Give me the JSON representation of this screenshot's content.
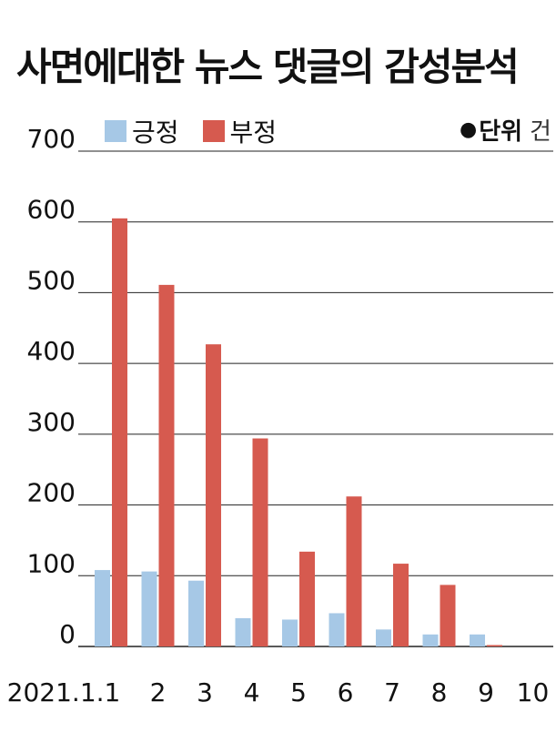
{
  "title": "사면에대한 뉴스 댓글의 감성분석",
  "unit": {
    "label": "단위",
    "value": "건"
  },
  "colors": {
    "positive": "#a6c8e6",
    "negative": "#d65a4f",
    "grid": "#222222"
  },
  "chart_data": {
    "type": "bar",
    "title": "사면에대한 뉴스 댓글의 감성분석",
    "categories": [
      "2021.1.1",
      "2",
      "3",
      "4",
      "5",
      "6",
      "7",
      "8",
      "9",
      "10"
    ],
    "series": [
      {
        "name": "긍정",
        "values": [
          108,
          106,
          93,
          40,
          38,
          47,
          24,
          17,
          17,
          0
        ]
      },
      {
        "name": "부정",
        "values": [
          605,
          511,
          427,
          294,
          134,
          212,
          117,
          87,
          2,
          0
        ]
      }
    ],
    "ylim": [
      0,
      700
    ],
    "yticks": [
      0,
      100,
      200,
      300,
      400,
      500,
      600,
      700
    ],
    "grid": true,
    "legend": "top-left"
  }
}
